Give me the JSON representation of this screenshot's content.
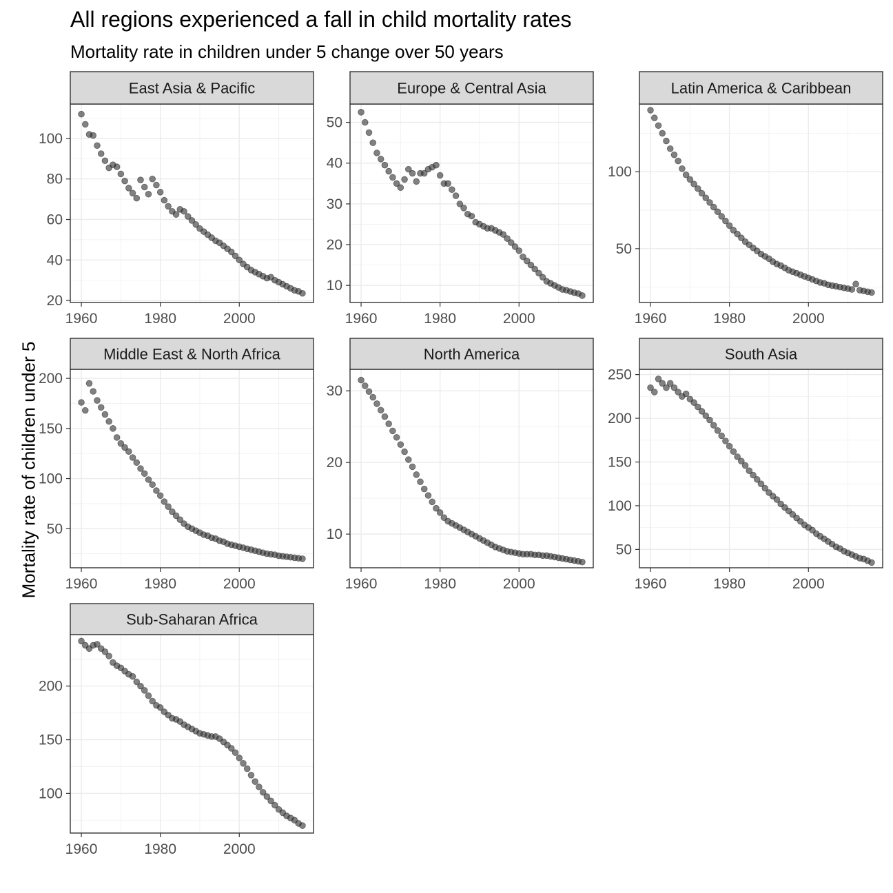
{
  "title": "All regions experienced a fall in child mortality rates",
  "subtitle": "Mortality rate in children under 5 change over 50 years",
  "ylabel": "Mortality rate of children under 5",
  "chart_data": {
    "type": "scatter",
    "facet_by": "region",
    "xlabel": "",
    "ylabel": "Mortality rate of children under 5",
    "x_range": [
      1960,
      2016
    ],
    "x_ticks": [
      1960,
      1980,
      2000
    ],
    "x": [
      1960,
      1961,
      1962,
      1963,
      1964,
      1965,
      1966,
      1967,
      1968,
      1969,
      1970,
      1971,
      1972,
      1973,
      1974,
      1975,
      1976,
      1977,
      1978,
      1979,
      1980,
      1981,
      1982,
      1983,
      1984,
      1985,
      1986,
      1987,
      1988,
      1989,
      1990,
      1991,
      1992,
      1993,
      1994,
      1995,
      1996,
      1997,
      1998,
      1999,
      2000,
      2001,
      2002,
      2003,
      2004,
      2005,
      2006,
      2007,
      2008,
      2009,
      2010,
      2011,
      2012,
      2013,
      2014,
      2015,
      2016
    ],
    "point_color": "#333333",
    "grid": true,
    "panels": [
      {
        "region": "East Asia & Pacific",
        "ylim": [
          19,
          117
        ],
        "y_ticks": [
          20,
          40,
          60,
          80,
          100
        ],
        "values": [
          112,
          107,
          102,
          101.5,
          96.5,
          92.5,
          89,
          85.5,
          87,
          86,
          82.5,
          79,
          75.5,
          73,
          70.5,
          79.5,
          76,
          72.5,
          80,
          77,
          73.5,
          69.5,
          66.5,
          64,
          62.5,
          65,
          64,
          61.5,
          59.5,
          57.5,
          55.5,
          54,
          52.5,
          51,
          49.5,
          48.5,
          47,
          45.5,
          44,
          42,
          40,
          38,
          36.5,
          35,
          34,
          33,
          32,
          31,
          31.5,
          30,
          29,
          28,
          27,
          26,
          25,
          24.5,
          23.5
        ]
      },
      {
        "region": "Europe & Central Asia",
        "ylim": [
          5.8,
          54.5
        ],
        "y_ticks": [
          10,
          20,
          30,
          40,
          50
        ],
        "values": [
          52.5,
          50,
          47.5,
          45,
          42.5,
          41,
          39.5,
          38,
          36.5,
          35,
          34,
          36,
          38.5,
          37.5,
          35.5,
          37.5,
          37.5,
          38.5,
          39,
          39.5,
          37,
          35,
          35,
          33.5,
          32,
          30,
          29,
          27.5,
          27,
          25.5,
          25,
          24.5,
          24,
          24,
          23.5,
          23,
          22.5,
          21.5,
          20.5,
          19.5,
          18.5,
          17,
          16,
          15,
          14,
          13,
          12,
          11,
          10.5,
          10,
          9.5,
          9,
          8.8,
          8.5,
          8.2,
          8,
          7.5
        ]
      },
      {
        "region": "Latin America & Caribbean",
        "ylim": [
          15,
          144
        ],
        "y_ticks": [
          50,
          100
        ],
        "values": [
          140,
          135,
          130,
          125,
          120,
          115,
          111,
          107,
          102,
          98,
          95,
          92,
          89,
          86,
          83,
          80,
          77,
          74,
          71,
          68,
          65,
          62,
          59.5,
          57,
          54.5,
          52.5,
          50.5,
          48.5,
          46.5,
          45,
          43.5,
          41.5,
          40,
          39,
          37.5,
          36,
          35,
          34,
          33,
          32,
          31,
          30,
          29,
          28,
          27.5,
          26.5,
          26,
          25.5,
          25,
          24.5,
          24,
          23.5,
          27,
          23,
          22.5,
          22,
          21.5
        ]
      },
      {
        "region": "Middle East & North Africa",
        "ylim": [
          11,
          209
        ],
        "y_ticks": [
          50,
          100,
          150,
          200
        ],
        "values": [
          176,
          168,
          195,
          187,
          178,
          171,
          164,
          157,
          150,
          141,
          135,
          131,
          127,
          121,
          116,
          110,
          105,
          99,
          94,
          88,
          83,
          77,
          72,
          67,
          63,
          59,
          55,
          52,
          50,
          48,
          46,
          44,
          43,
          41,
          40,
          38,
          37,
          35,
          34,
          33,
          32,
          31,
          30,
          29,
          28,
          27,
          26,
          25,
          24.5,
          24,
          23,
          22.5,
          22,
          21.5,
          21,
          20.5,
          20
        ]
      },
      {
        "region": "North America",
        "ylim": [
          5.3,
          33
        ],
        "y_ticks": [
          10,
          20,
          30
        ],
        "values": [
          31.5,
          30.7,
          29.9,
          29.1,
          28.2,
          27.3,
          26.4,
          25.4,
          24.4,
          23.5,
          22.5,
          21.5,
          20.4,
          19.4,
          18.3,
          17.3,
          16.3,
          15.4,
          14.5,
          13.6,
          13,
          12.3,
          11.8,
          11.5,
          11.2,
          10.9,
          10.6,
          10.3,
          10,
          9.7,
          9.4,
          9.1,
          8.8,
          8.5,
          8.2,
          8,
          7.8,
          7.6,
          7.5,
          7.4,
          7.3,
          7.2,
          7.2,
          7.2,
          7.1,
          7.1,
          7,
          7,
          6.9,
          6.8,
          6.7,
          6.6,
          6.5,
          6.4,
          6.3,
          6.2,
          6.1
        ]
      },
      {
        "region": "South Asia",
        "ylim": [
          29,
          256
        ],
        "y_ticks": [
          50,
          100,
          150,
          200,
          250
        ],
        "values": [
          235,
          230,
          245,
          240,
          235,
          240,
          235,
          230,
          225,
          228,
          222,
          218,
          213,
          208,
          203,
          198,
          192,
          186,
          180,
          174,
          168,
          162,
          156,
          151,
          146,
          140,
          135,
          130,
          125,
          120,
          115,
          111,
          107,
          102,
          98,
          94,
          90,
          86,
          82,
          78,
          75,
          72,
          68,
          65,
          62,
          59,
          56,
          53,
          51,
          48,
          46,
          44,
          42,
          40,
          39,
          37,
          35
        ]
      },
      {
        "region": "Sub-Saharan Africa",
        "ylim": [
          63,
          248
        ],
        "y_ticks": [
          100,
          150,
          200
        ],
        "values": [
          242,
          238,
          235,
          238,
          239,
          235,
          232,
          228,
          222,
          219,
          217,
          214,
          211,
          209,
          204,
          200,
          196,
          191,
          186,
          182,
          180,
          176,
          173,
          170,
          169,
          167,
          164,
          162,
          160,
          158,
          156,
          155,
          154,
          153,
          153,
          151,
          148,
          145,
          142,
          138,
          133,
          128,
          123,
          117,
          111,
          106,
          101,
          97,
          93,
          89,
          85,
          82,
          79,
          77,
          75,
          72,
          70
        ]
      }
    ]
  }
}
